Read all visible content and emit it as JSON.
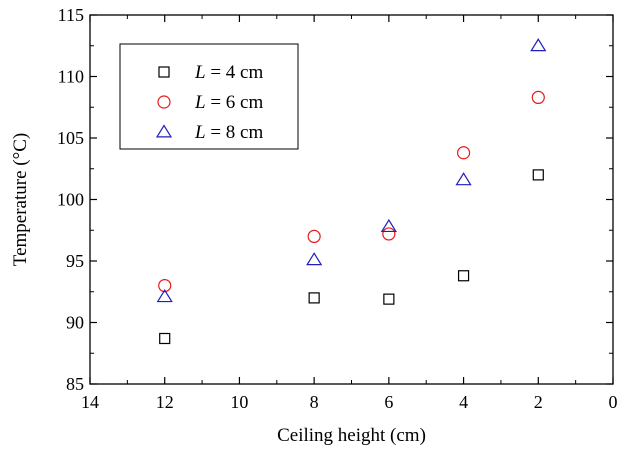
{
  "chart_data": {
    "type": "scatter",
    "title": "",
    "xlabel": "Ceiling height (cm)",
    "ylabel": "Temperature (°C)",
    "xlim": [
      14,
      0
    ],
    "ylim": [
      85,
      115
    ],
    "x_reversed": true,
    "xticks": [
      14,
      12,
      10,
      8,
      6,
      4,
      2,
      0
    ],
    "yticks": [
      85,
      90,
      95,
      100,
      105,
      110,
      115
    ],
    "grid": false,
    "legend_position": "top-left",
    "series": [
      {
        "name_var": "L",
        "name_rest": " = 4 cm",
        "marker": "square",
        "color": "#000000",
        "points": [
          [
            12,
            88.7
          ],
          [
            8,
            92.0
          ],
          [
            6,
            91.9
          ],
          [
            4,
            93.8
          ],
          [
            2,
            102.0
          ]
        ]
      },
      {
        "name_var": "L",
        "name_rest": " = 6 cm",
        "marker": "circle",
        "color": "#e8191c",
        "points": [
          [
            12,
            93.0
          ],
          [
            8,
            97.0
          ],
          [
            6,
            97.2
          ],
          [
            4,
            103.8
          ],
          [
            2,
            108.3
          ]
        ]
      },
      {
        "name_var": "L",
        "name_rest": " = 8 cm",
        "marker": "triangle",
        "color": "#1f1fbf",
        "points": [
          [
            12,
            92.1
          ],
          [
            8,
            95.1
          ],
          [
            6,
            97.8
          ],
          [
            4,
            101.6
          ],
          [
            2,
            112.5
          ]
        ]
      }
    ]
  }
}
